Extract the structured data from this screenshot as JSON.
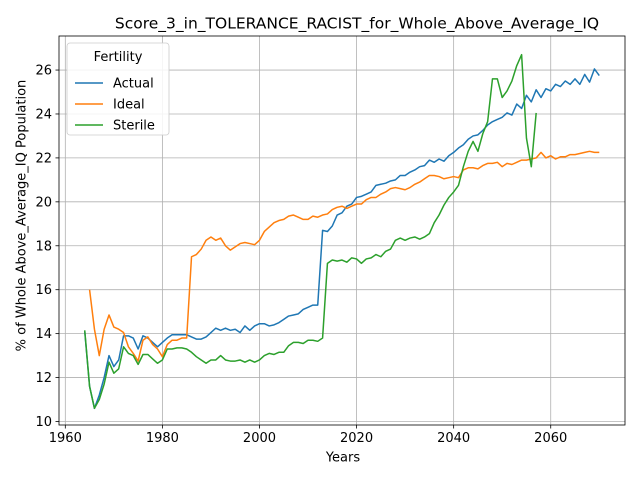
{
  "chart_data": {
    "type": "line",
    "title": "Score_3_in_TOLERANCE_RACIST_for_Whole_Above_Average_IQ",
    "xlabel": "Years",
    "ylabel": "% of Whole Above_Average_IQ Population",
    "xlim": [
      1958.7,
      2075.3
    ],
    "ylim": [
      9.84,
      27.55
    ],
    "xticks": [
      1960,
      1980,
      2000,
      2020,
      2040,
      2060
    ],
    "yticks": [
      10,
      12,
      14,
      16,
      18,
      20,
      22,
      24,
      26
    ],
    "grid": true,
    "legend": {
      "title": "Fertility",
      "placement": "upper-left"
    },
    "series": [
      {
        "name": "Actual",
        "color": "#1f77b4",
        "x": [
          1964,
          1965,
          1966,
          1967,
          1968,
          1969,
          1970,
          1971,
          1972,
          1973,
          1974,
          1975,
          1976,
          1977,
          1978,
          1979,
          1980,
          1981,
          1982,
          1983,
          1984,
          1985,
          1986,
          1987,
          1988,
          1989,
          1990,
          1991,
          1992,
          1993,
          1994,
          1995,
          1996,
          1997,
          1998,
          1999,
          2000,
          2001,
          2002,
          2003,
          2004,
          2005,
          2006,
          2007,
          2008,
          2009,
          2010,
          2011,
          2012,
          2013,
          2014,
          2015,
          2016,
          2017,
          2018,
          2019,
          2020,
          2021,
          2022,
          2023,
          2024,
          2025,
          2026,
          2027,
          2028,
          2029,
          2030,
          2031,
          2032,
          2033,
          2034,
          2035,
          2036,
          2037,
          2038,
          2039,
          2040,
          2041,
          2042,
          2043,
          2044,
          2045,
          2046,
          2047,
          2048,
          2049,
          2050,
          2051,
          2052,
          2053,
          2054,
          2055,
          2056,
          2057,
          2058,
          2059,
          2060,
          2061,
          2062,
          2063,
          2064,
          2065,
          2066,
          2067,
          2068,
          2069,
          2070
        ],
        "values": [
          14.1,
          11.6,
          10.6,
          11.2,
          12.0,
          13.0,
          12.5,
          12.8,
          13.9,
          13.9,
          13.8,
          13.3,
          13.9,
          13.8,
          13.6,
          13.4,
          13.6,
          13.8,
          13.95,
          13.95,
          13.95,
          13.95,
          13.85,
          13.75,
          13.75,
          13.85,
          14.05,
          14.25,
          14.15,
          14.25,
          14.15,
          14.2,
          14.05,
          14.35,
          14.15,
          14.35,
          14.45,
          14.45,
          14.35,
          14.4,
          14.5,
          14.65,
          14.8,
          14.85,
          14.9,
          15.1,
          15.2,
          15.3,
          15.3,
          18.7,
          18.65,
          18.9,
          19.4,
          19.5,
          19.8,
          19.9,
          20.2,
          20.25,
          20.35,
          20.45,
          20.75,
          20.8,
          20.85,
          20.95,
          21.0,
          21.2,
          21.2,
          21.35,
          21.45,
          21.6,
          21.65,
          21.9,
          21.8,
          21.95,
          21.85,
          22.1,
          22.25,
          22.45,
          22.6,
          22.85,
          23.0,
          23.05,
          23.25,
          23.5,
          23.65,
          23.75,
          23.85,
          24.05,
          23.95,
          24.45,
          24.25,
          24.85,
          24.55,
          25.1,
          24.75,
          25.15,
          25.05,
          25.35,
          25.25,
          25.5,
          25.35,
          25.6,
          25.35,
          25.8,
          25.45,
          26.05,
          25.75
        ]
      },
      {
        "name": "Ideal",
        "color": "#ff7f0e",
        "x": [
          1965,
          1966,
          1967,
          1968,
          1969,
          1970,
          1971,
          1972,
          1973,
          1974,
          1975,
          1976,
          1977,
          1978,
          1979,
          1980,
          1981,
          1982,
          1983,
          1984,
          1985,
          1986,
          1987,
          1988,
          1989,
          1990,
          1991,
          1992,
          1993,
          1994,
          1995,
          1996,
          1997,
          1998,
          1999,
          2000,
          2001,
          2002,
          2003,
          2004,
          2005,
          2006,
          2007,
          2008,
          2009,
          2010,
          2011,
          2012,
          2013,
          2014,
          2015,
          2016,
          2017,
          2018,
          2019,
          2020,
          2021,
          2022,
          2023,
          2024,
          2025,
          2026,
          2027,
          2028,
          2029,
          2030,
          2031,
          2032,
          2033,
          2034,
          2035,
          2036,
          2037,
          2038,
          2039,
          2040,
          2041,
          2042,
          2043,
          2044,
          2045,
          2046,
          2047,
          2048,
          2049,
          2050,
          2051,
          2052,
          2053,
          2054,
          2055,
          2056,
          2057,
          2058,
          2059,
          2060,
          2061,
          2062,
          2063,
          2064,
          2065,
          2066,
          2067,
          2068,
          2069,
          2070
        ],
        "values": [
          16.0,
          14.2,
          13.0,
          14.2,
          14.85,
          14.3,
          14.2,
          14.05,
          13.4,
          13.1,
          12.75,
          13.7,
          13.85,
          13.5,
          13.3,
          12.95,
          13.5,
          13.7,
          13.7,
          13.8,
          13.8,
          17.5,
          17.6,
          17.85,
          18.25,
          18.4,
          18.25,
          18.35,
          18.0,
          17.8,
          17.95,
          18.1,
          18.15,
          18.1,
          18.05,
          18.25,
          18.65,
          18.85,
          19.05,
          19.15,
          19.2,
          19.35,
          19.4,
          19.3,
          19.2,
          19.2,
          19.35,
          19.3,
          19.4,
          19.45,
          19.65,
          19.75,
          19.8,
          19.7,
          19.8,
          19.9,
          19.9,
          20.1,
          20.2,
          20.2,
          20.35,
          20.45,
          20.6,
          20.65,
          20.6,
          20.55,
          20.65,
          20.8,
          20.9,
          21.05,
          21.2,
          21.2,
          21.15,
          21.05,
          21.1,
          21.15,
          21.1,
          21.45,
          21.55,
          21.55,
          21.5,
          21.65,
          21.75,
          21.75,
          21.8,
          21.6,
          21.75,
          21.7,
          21.8,
          21.9,
          21.9,
          21.95,
          22.0,
          22.25,
          22.0,
          22.1,
          21.95,
          22.05,
          22.05,
          22.15,
          22.15,
          22.2,
          22.25,
          22.3,
          22.25,
          22.25
        ]
      },
      {
        "name": "Sterile",
        "color": "#2ca02c",
        "x": [
          1964,
          1965,
          1966,
          1967,
          1968,
          1969,
          1970,
          1971,
          1972,
          1973,
          1974,
          1975,
          1976,
          1977,
          1978,
          1979,
          1980,
          1981,
          1982,
          1983,
          1984,
          1985,
          1986,
          1987,
          1988,
          1989,
          1990,
          1991,
          1992,
          1993,
          1994,
          1995,
          1996,
          1997,
          1998,
          1999,
          2000,
          2001,
          2002,
          2003,
          2004,
          2005,
          2006,
          2007,
          2008,
          2009,
          2010,
          2011,
          2012,
          2013,
          2014,
          2015,
          2016,
          2017,
          2018,
          2019,
          2020,
          2021,
          2022,
          2023,
          2024,
          2025,
          2026,
          2027,
          2028,
          2029,
          2030,
          2031,
          2032,
          2033,
          2034,
          2035,
          2036,
          2037,
          2038,
          2039,
          2040,
          2041,
          2042,
          2043,
          2044,
          2045,
          2046,
          2047,
          2048,
          2049,
          2050,
          2051,
          2052,
          2053,
          2054,
          2055,
          2056,
          2057
        ],
        "values": [
          14.15,
          11.6,
          10.6,
          11.0,
          11.7,
          12.7,
          12.2,
          12.4,
          13.4,
          13.1,
          13.0,
          12.6,
          13.05,
          13.05,
          12.85,
          12.65,
          12.8,
          13.3,
          13.3,
          13.35,
          13.35,
          13.3,
          13.15,
          12.95,
          12.8,
          12.65,
          12.8,
          12.8,
          13.0,
          12.8,
          12.75,
          12.75,
          12.8,
          12.7,
          12.8,
          12.7,
          12.8,
          13.0,
          13.1,
          13.05,
          13.15,
          13.15,
          13.45,
          13.6,
          13.6,
          13.55,
          13.7,
          13.7,
          13.65,
          13.8,
          17.2,
          17.35,
          17.3,
          17.35,
          17.25,
          17.45,
          17.4,
          17.2,
          17.4,
          17.45,
          17.6,
          17.5,
          17.75,
          17.85,
          18.25,
          18.35,
          18.25,
          18.35,
          18.4,
          18.3,
          18.4,
          18.55,
          19.05,
          19.4,
          19.85,
          20.2,
          20.45,
          20.75,
          21.6,
          22.3,
          22.75,
          22.3,
          23.1,
          23.65,
          25.6,
          25.6,
          24.75,
          25.05,
          25.5,
          26.2,
          26.7,
          22.9,
          21.6,
          24.05
        ]
      }
    ]
  }
}
